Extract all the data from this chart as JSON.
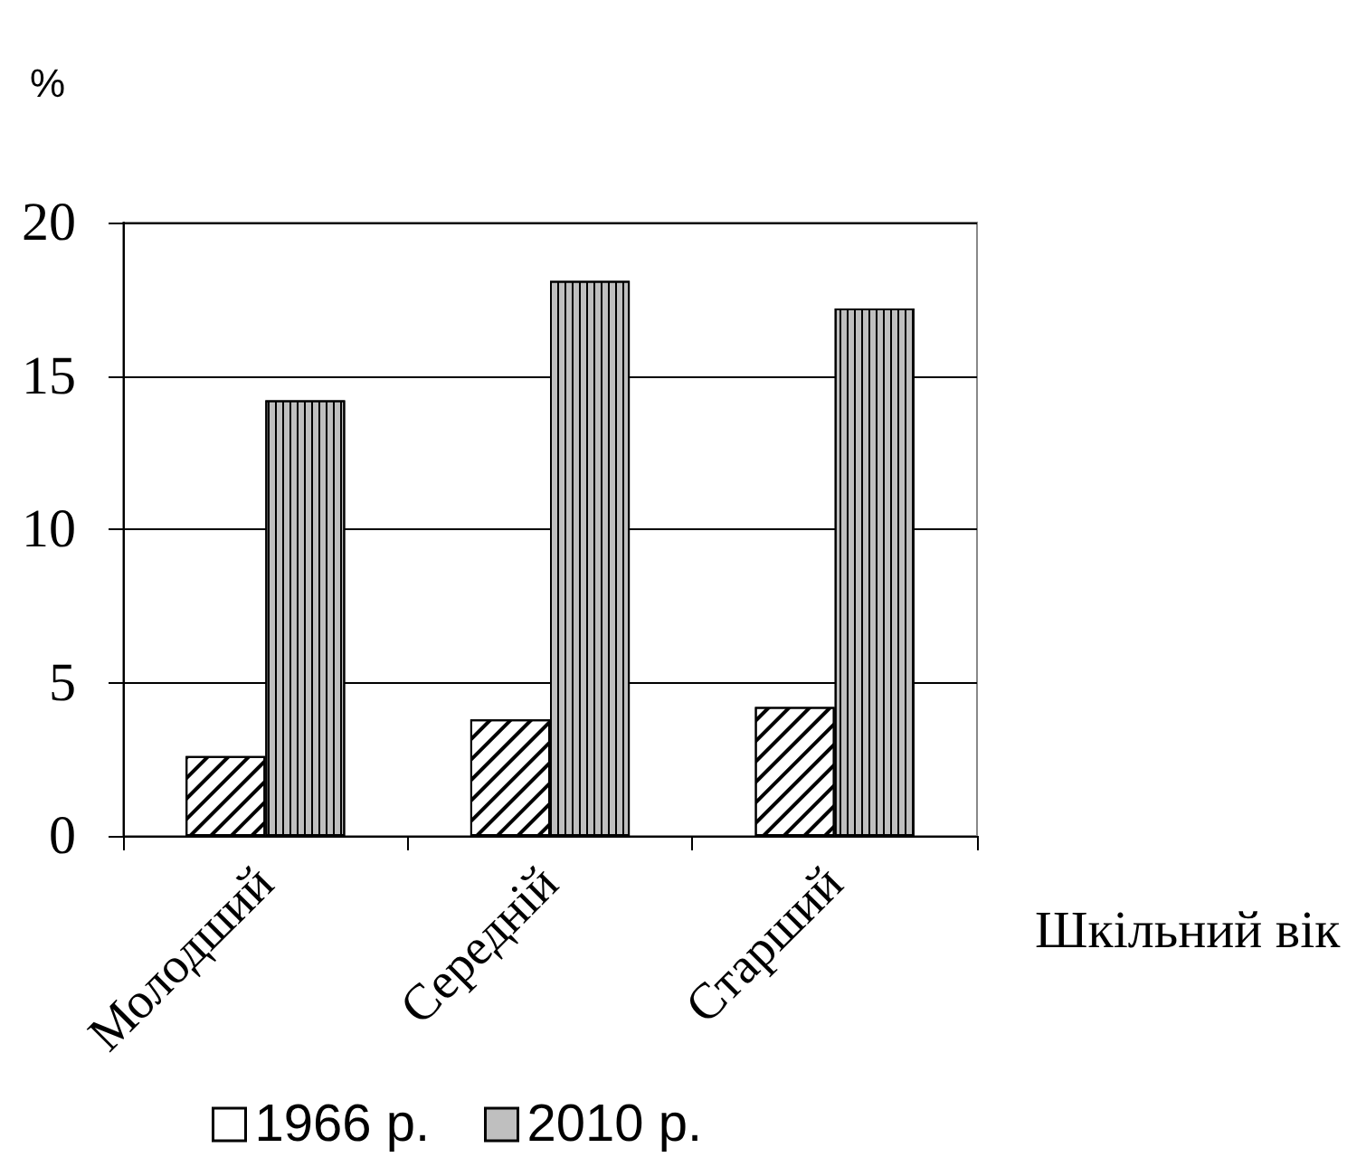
{
  "chart_data": {
    "type": "bar",
    "ylabel": "%",
    "xlabel": "Шкільний вік",
    "categories": [
      "Молодший",
      "Середній",
      "Старший"
    ],
    "series": [
      {
        "name": "1966 р.",
        "color": "#ffffff",
        "values": [
          2.6,
          3.8,
          4.2
        ]
      },
      {
        "name": "2010 р.",
        "color": "#bfbfbf",
        "values": [
          14.2,
          18.1,
          17.2
        ]
      }
    ],
    "ylim": [
      0,
      20
    ],
    "yticks": [
      0,
      5,
      10,
      15,
      20
    ],
    "grid": "y",
    "legend": "bottom"
  }
}
